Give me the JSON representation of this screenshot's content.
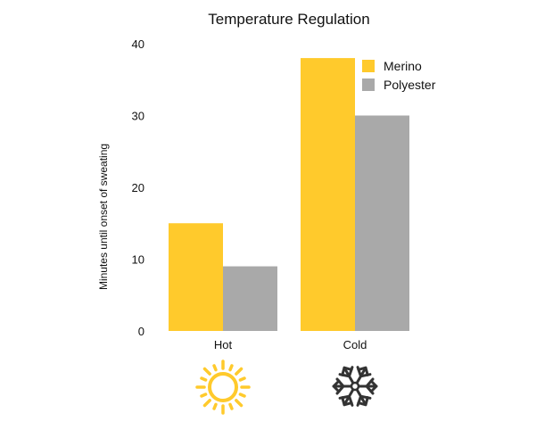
{
  "chart_data": {
    "type": "bar",
    "title": "Temperature Regulation",
    "xlabel": "",
    "ylabel": "Minutes until onset of sweating",
    "categories": [
      "Hot",
      "Cold"
    ],
    "series": [
      {
        "name": "Merino",
        "values": [
          15,
          38
        ],
        "color": "#FFCA2C"
      },
      {
        "name": "Polyester",
        "values": [
          9,
          30
        ],
        "color": "#A9A9A9"
      }
    ],
    "ylim": [
      0,
      40
    ],
    "yticks": [
      0,
      10,
      20,
      30,
      40
    ],
    "grid": false,
    "legend": "top-right"
  },
  "icons": [
    {
      "category": "Hot",
      "icon": "sun-icon",
      "color": "#FFCA2C"
    },
    {
      "category": "Cold",
      "icon": "snowflake-icon",
      "color": "#333333"
    }
  ]
}
